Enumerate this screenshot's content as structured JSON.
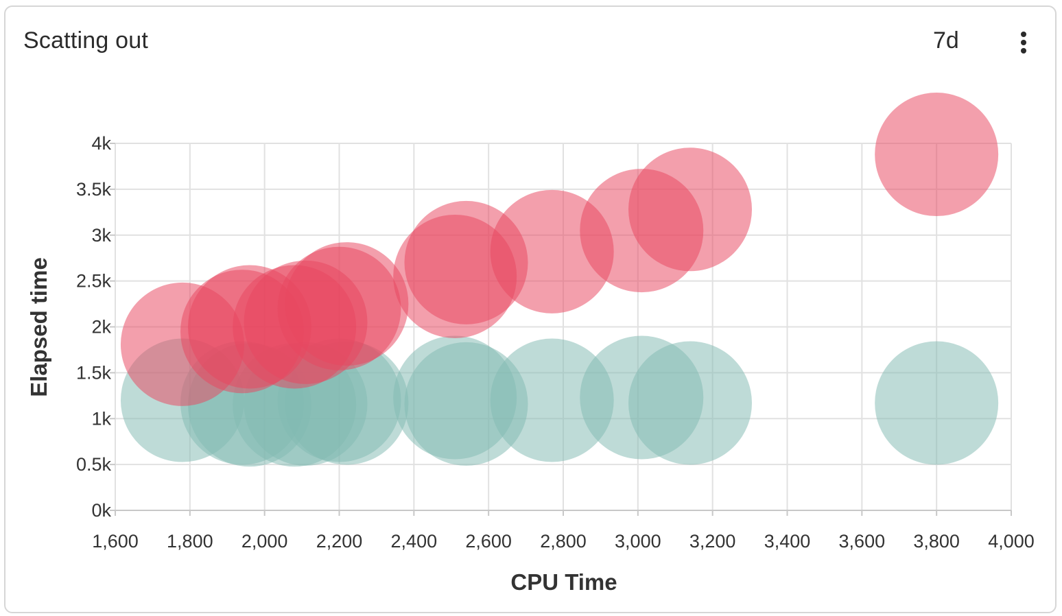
{
  "card": {
    "title": "Scatting out",
    "range_label": "7d",
    "menu_icon": "more-vertical-icon"
  },
  "colors": {
    "series_red": "#e8465f",
    "series_teal": "#82bab2",
    "grid": "#e1e1e1",
    "axis": "#c8c8c8"
  },
  "chart_data": {
    "type": "scatter",
    "title": "",
    "xlabel": "CPU Time",
    "ylabel": "Elapsed time",
    "xlim": [
      1600,
      4000
    ],
    "ylim": [
      0,
      4000
    ],
    "x_ticks": [
      1600,
      1800,
      2000,
      2200,
      2400,
      2600,
      2800,
      3000,
      3200,
      3400,
      3600,
      3800,
      4000
    ],
    "x_tick_labels": [
      "1,600",
      "1,800",
      "2,000",
      "2,200",
      "2,400",
      "2,600",
      "2,800",
      "3,000",
      "3,200",
      "3,400",
      "3,600",
      "3,800",
      "4,000"
    ],
    "y_ticks": [
      0,
      500,
      1000,
      1500,
      2000,
      2500,
      3000,
      3500,
      4000
    ],
    "y_tick_labels": [
      "0k",
      "0.5k",
      "1k",
      "1.5k",
      "2k",
      "2.5k",
      "3k",
      "3.5k",
      "4k"
    ],
    "grid": true,
    "legend": "none",
    "series": [
      {
        "color": "#82bab2",
        "points": [
          {
            "x": 1780,
            "y": 1200
          },
          {
            "x": 1940,
            "y": 1170
          },
          {
            "x": 1960,
            "y": 1150
          },
          {
            "x": 2080,
            "y": 1150
          },
          {
            "x": 2110,
            "y": 1160
          },
          {
            "x": 2200,
            "y": 1200
          },
          {
            "x": 2220,
            "y": 1170
          },
          {
            "x": 2510,
            "y": 1230
          },
          {
            "x": 2540,
            "y": 1160
          },
          {
            "x": 2770,
            "y": 1200
          },
          {
            "x": 3010,
            "y": 1230
          },
          {
            "x": 3140,
            "y": 1170
          },
          {
            "x": 3800,
            "y": 1170
          }
        ]
      },
      {
        "color": "#e8465f",
        "points": [
          {
            "x": 1780,
            "y": 1810
          },
          {
            "x": 1940,
            "y": 1950
          },
          {
            "x": 1960,
            "y": 2000
          },
          {
            "x": 2080,
            "y": 2000
          },
          {
            "x": 2110,
            "y": 2050
          },
          {
            "x": 2200,
            "y": 2200
          },
          {
            "x": 2220,
            "y": 2250
          },
          {
            "x": 2510,
            "y": 2550
          },
          {
            "x": 2540,
            "y": 2700
          },
          {
            "x": 2770,
            "y": 2820
          },
          {
            "x": 3010,
            "y": 3050
          },
          {
            "x": 3140,
            "y": 3280
          },
          {
            "x": 3800,
            "y": 3880
          }
        ]
      }
    ]
  }
}
